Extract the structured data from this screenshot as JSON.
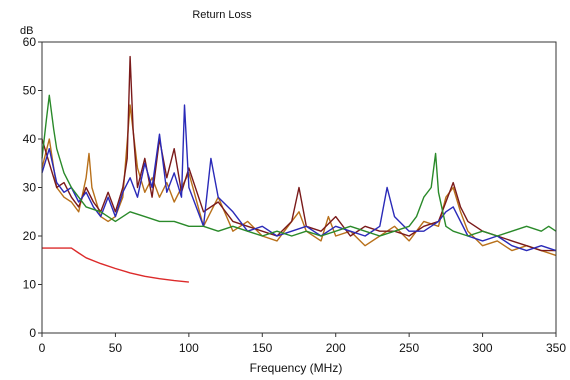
{
  "chart_data": {
    "type": "line",
    "title": "Return Loss",
    "xlabel": "Frequency (MHz)",
    "ylabel": "dB",
    "xlim": [
      0,
      350
    ],
    "ylim": [
      0,
      60
    ],
    "xticks": [
      0,
      50,
      100,
      150,
      200,
      250,
      300,
      350
    ],
    "yticks": [
      0,
      10,
      20,
      30,
      40,
      50,
      60
    ],
    "grid": false,
    "legend": "none",
    "series": [
      {
        "color": "#b8701a",
        "x": [
          0,
          5,
          10,
          15,
          20,
          25,
          30,
          32,
          34,
          40,
          45,
          50,
          55,
          60,
          65,
          70,
          75,
          80,
          85,
          90,
          95,
          100,
          110,
          120,
          130,
          140,
          150,
          160,
          170,
          175,
          180,
          190,
          195,
          200,
          210,
          220,
          230,
          240,
          250,
          260,
          270,
          275,
          280,
          285,
          290,
          300,
          310,
          320,
          330,
          340,
          350
        ],
        "y": [
          34,
          40,
          30,
          28,
          27,
          25,
          32,
          37,
          30,
          24,
          23,
          24,
          28,
          47,
          34,
          29,
          32,
          28,
          31,
          27,
          30,
          33,
          22,
          28,
          21,
          23,
          20,
          19,
          23,
          25,
          21,
          19,
          24,
          20,
          21,
          18,
          20,
          22,
          19,
          23,
          22,
          28,
          30,
          25,
          21,
          18,
          19,
          17,
          18,
          17,
          16
        ]
      },
      {
        "color": "#7a1a1a",
        "x": [
          0,
          5,
          10,
          15,
          20,
          25,
          30,
          35,
          40,
          45,
          50,
          55,
          58,
          60,
          62,
          65,
          70,
          75,
          80,
          85,
          90,
          95,
          100,
          110,
          120,
          130,
          140,
          150,
          160,
          170,
          175,
          180,
          190,
          200,
          210,
          220,
          230,
          240,
          250,
          260,
          270,
          275,
          280,
          285,
          290,
          300,
          310,
          320,
          330,
          340,
          350
        ],
        "y": [
          40,
          35,
          30,
          31,
          28,
          26,
          30,
          27,
          25,
          29,
          25,
          30,
          36,
          57,
          42,
          30,
          36,
          28,
          40,
          32,
          38,
          29,
          34,
          25,
          27,
          23,
          22,
          21,
          20,
          23,
          30,
          22,
          21,
          24,
          20,
          22,
          21,
          21,
          20,
          22,
          23,
          27,
          31,
          26,
          23,
          21,
          20,
          19,
          18,
          17,
          17
        ]
      },
      {
        "color": "#2a2ab8",
        "x": [
          0,
          5,
          10,
          15,
          20,
          25,
          30,
          35,
          40,
          45,
          50,
          55,
          60,
          65,
          70,
          75,
          80,
          85,
          90,
          95,
          97,
          100,
          110,
          115,
          120,
          130,
          140,
          150,
          160,
          170,
          180,
          190,
          200,
          210,
          220,
          230,
          235,
          240,
          250,
          260,
          270,
          275,
          280,
          290,
          300,
          310,
          320,
          330,
          340,
          350
        ],
        "y": [
          33,
          38,
          31,
          29,
          30,
          27,
          29,
          26,
          24,
          28,
          24,
          29,
          32,
          28,
          35,
          30,
          41,
          29,
          33,
          28,
          47,
          30,
          22,
          36,
          28,
          25,
          21,
          22,
          20,
          21,
          22,
          20,
          22,
          21,
          20,
          22,
          30,
          24,
          21,
          21,
          23,
          25,
          26,
          20,
          19,
          20,
          18,
          17,
          18,
          17
        ]
      },
      {
        "color": "#2a8a2a",
        "x": [
          0,
          3,
          5,
          8,
          10,
          15,
          20,
          25,
          30,
          40,
          50,
          60,
          70,
          80,
          90,
          100,
          110,
          120,
          130,
          140,
          150,
          160,
          170,
          180,
          190,
          200,
          210,
          220,
          230,
          240,
          250,
          255,
          260,
          265,
          268,
          270,
          275,
          280,
          290,
          300,
          310,
          320,
          330,
          340,
          345,
          350
        ],
        "y": [
          36,
          44,
          49,
          42,
          38,
          33,
          30,
          28,
          26,
          25,
          23,
          25,
          24,
          23,
          23,
          22,
          22,
          21,
          22,
          21,
          20,
          21,
          20,
          21,
          20,
          21,
          22,
          21,
          20,
          21,
          22,
          24,
          28,
          30,
          37,
          29,
          22,
          21,
          20,
          21,
          20,
          21,
          22,
          21,
          22,
          21
        ]
      },
      {
        "color": "#dc2a2a",
        "x": [
          0,
          5,
          10,
          15,
          20,
          25,
          30,
          40,
          50,
          60,
          70,
          80,
          90,
          100
        ],
        "y": [
          17.5,
          17.5,
          17.5,
          17.5,
          17.5,
          16.5,
          15.5,
          14.3,
          13.3,
          12.4,
          11.7,
          11.2,
          10.8,
          10.5
        ]
      }
    ]
  }
}
